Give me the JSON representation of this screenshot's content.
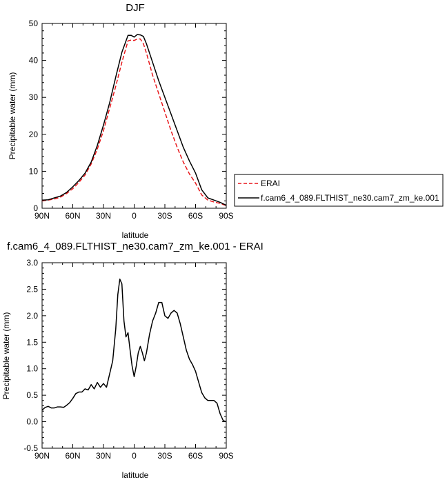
{
  "chart_data": [
    {
      "type": "line",
      "title": "DJF",
      "xlabel": "latitude",
      "ylabel": "Precipitable water (mm)",
      "xlim": [
        90,
        -90
      ],
      "ylim": [
        0,
        50
      ],
      "xticks": [
        "90N",
        "60N",
        "30N",
        "0",
        "30S",
        "60S",
        "90S"
      ],
      "yticks": [
        "0",
        "10",
        "20",
        "30",
        "40",
        "50"
      ],
      "legend": {
        "placement": "right",
        "entries": [
          "ERAI",
          "f.cam6_4_089.FLTHIST_ne30.cam7_zm_ke.001"
        ]
      },
      "series": [
        {
          "name": "ERAI",
          "color": "#e8171b",
          "dash": true,
          "x": [
            90,
            84,
            78,
            72,
            66,
            60,
            54,
            48,
            42,
            36,
            30,
            24,
            18,
            12,
            6,
            3,
            0,
            -3,
            -6,
            -9,
            -12,
            -18,
            -24,
            -30,
            -36,
            -42,
            -48,
            -54,
            -60,
            -66,
            -72,
            -78,
            -84,
            -90
          ],
          "y": [
            2.0,
            2.2,
            2.5,
            3.0,
            4.0,
            5.3,
            7.0,
            9.0,
            12.0,
            16.0,
            21.0,
            27.0,
            33.0,
            39.5,
            45.3,
            45.5,
            45.4,
            45.8,
            45.8,
            44.5,
            42.0,
            36.0,
            31.0,
            26.0,
            21.0,
            16.5,
            12.5,
            9.3,
            6.8,
            3.6,
            2.2,
            1.7,
            1.3,
            0.7
          ]
        },
        {
          "name": "f.cam6_4_089.FLTHIST_ne30.cam7_zm_ke.001",
          "color": "#000000",
          "dash": false,
          "x": [
            90,
            84,
            78,
            72,
            66,
            60,
            54,
            48,
            42,
            36,
            30,
            24,
            18,
            12,
            6,
            3,
            0,
            -3,
            -6,
            -9,
            -12,
            -18,
            -24,
            -30,
            -36,
            -42,
            -48,
            -54,
            -60,
            -66,
            -72,
            -78,
            -84,
            -90
          ],
          "y": [
            2.2,
            2.3,
            2.8,
            3.3,
            4.3,
            5.8,
            7.5,
            9.5,
            12.5,
            17.0,
            22.5,
            28.5,
            35.5,
            42.2,
            46.8,
            46.8,
            46.3,
            47.0,
            46.9,
            46.5,
            44.5,
            39.5,
            34.5,
            30.0,
            25.5,
            21.0,
            16.5,
            12.8,
            9.5,
            5.0,
            2.8,
            2.2,
            1.6,
            0.8
          ]
        }
      ]
    },
    {
      "type": "line",
      "title": "f.cam6_4_089.FLTHIST_ne30.cam7_zm_ke.001 - ERAI",
      "xlabel": "latitude",
      "ylabel": "Precipitable water (mm)",
      "xlim": [
        90,
        -90
      ],
      "ylim": [
        -0.5,
        3.0
      ],
      "xticks": [
        "90N",
        "60N",
        "30N",
        "0",
        "30S",
        "60S",
        "90S"
      ],
      "yticks": [
        "-0.5",
        "0.0",
        "0.5",
        "1.0",
        "1.5",
        "2.0",
        "2.5",
        "3.0"
      ],
      "series": [
        {
          "color": "#000000",
          "dash": false,
          "x": [
            90,
            87,
            84,
            81,
            78,
            75,
            72,
            69,
            66,
            63,
            60,
            57,
            54,
            51,
            48,
            45,
            42,
            39,
            36,
            33,
            30,
            27,
            24,
            21,
            18,
            16,
            14,
            12,
            10,
            8,
            6,
            4,
            2,
            0,
            -2,
            -4,
            -6,
            -8,
            -10,
            -12,
            -15,
            -18,
            -21,
            -24,
            -27,
            -30,
            -33,
            -36,
            -39,
            -42,
            -45,
            -48,
            -51,
            -54,
            -57,
            -60,
            -63,
            -66,
            -69,
            -72,
            -75,
            -78,
            -81,
            -84,
            -87,
            -90
          ],
          "y": [
            0.22,
            0.27,
            0.29,
            0.26,
            0.26,
            0.28,
            0.28,
            0.27,
            0.31,
            0.36,
            0.44,
            0.53,
            0.56,
            0.56,
            0.62,
            0.6,
            0.7,
            0.62,
            0.74,
            0.65,
            0.72,
            0.65,
            0.9,
            1.15,
            1.75,
            2.4,
            2.69,
            2.6,
            1.9,
            1.6,
            1.68,
            1.35,
            1.05,
            0.85,
            1.05,
            1.3,
            1.42,
            1.3,
            1.15,
            1.3,
            1.65,
            1.9,
            2.05,
            2.25,
            2.25,
            2.0,
            1.95,
            2.05,
            2.1,
            2.05,
            1.85,
            1.6,
            1.35,
            1.18,
            1.08,
            0.95,
            0.75,
            0.55,
            0.45,
            0.4,
            0.4,
            0.4,
            0.35,
            0.15,
            0.02,
            0.0
          ]
        }
      ]
    }
  ]
}
